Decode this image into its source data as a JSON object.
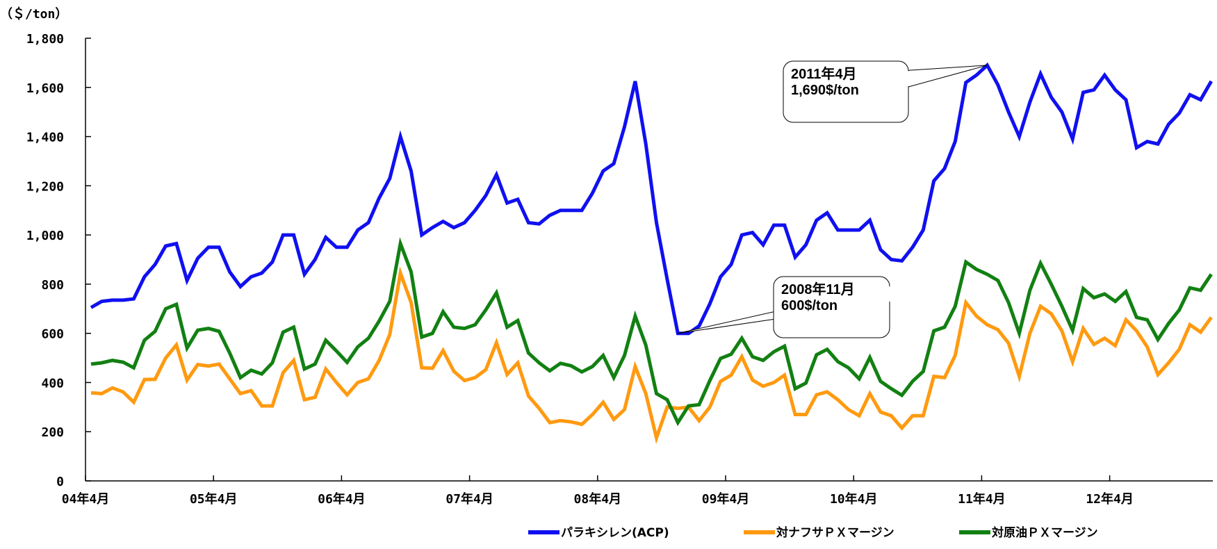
{
  "chart_data": {
    "type": "line",
    "ylabel": "（＄/ton）",
    "ylim": [
      0,
      1800
    ],
    "yticks": [
      0,
      200,
      400,
      600,
      800,
      1000,
      1200,
      1400,
      1600,
      1800
    ],
    "ytick_labels": [
      "0",
      "200",
      "400",
      "600",
      "800",
      "1,000",
      "1,200",
      "1,400",
      "1,600",
      "1,800"
    ],
    "xticks": [
      {
        "label": "04年4月",
        "index": 0
      },
      {
        "label": "05年4月",
        "index": 12
      },
      {
        "label": "06年4月",
        "index": 24
      },
      {
        "label": "07年4月",
        "index": 36
      },
      {
        "label": "08年4月",
        "index": 48
      },
      {
        "label": "09年4月",
        "index": 60
      },
      {
        "label": "10年4月",
        "index": 72
      },
      {
        "label": "11年4月",
        "index": 84
      },
      {
        "label": "12年4月",
        "index": 96
      }
    ],
    "grid": false,
    "legend": "bottom",
    "series": [
      {
        "name": "パラキシレン(ACP)",
        "color": "#1010f0",
        "values": [
          705,
          730,
          735,
          735,
          740,
          830,
          880,
          955,
          965,
          815,
          905,
          950,
          950,
          850,
          790,
          830,
          845,
          890,
          1000,
          1000,
          840,
          900,
          990,
          950,
          950,
          1020,
          1050,
          1150,
          1230,
          1400,
          1260,
          1000,
          1030,
          1055,
          1030,
          1050,
          1100,
          1160,
          1245,
          1130,
          1145,
          1050,
          1045,
          1080,
          1100,
          1100,
          1100,
          1170,
          1260,
          1290,
          1440,
          1625,
          1370,
          1050,
          820,
          600,
          600,
          630,
          720,
          830,
          880,
          1000,
          1010,
          960,
          1040,
          1040,
          910,
          960,
          1060,
          1090,
          1020,
          1020,
          1020,
          1060,
          940,
          900,
          895,
          950,
          1020,
          1220,
          1270,
          1380,
          1620,
          1650,
          1690,
          1610,
          1500,
          1400,
          1540,
          1655,
          1560,
          1500,
          1390,
          1580,
          1590,
          1650,
          1590,
          1550,
          1355,
          1380,
          1370,
          1450,
          1495,
          1570,
          1550,
          1625
        ]
      },
      {
        "name": "対ナフサＰＸマージン",
        "color": "#ff9a10",
        "values": [
          358,
          355,
          378,
          362,
          320,
          412,
          413,
          500,
          553,
          410,
          473,
          467,
          475,
          415,
          355,
          367,
          305,
          305,
          440,
          490,
          330,
          340,
          455,
          400,
          350,
          400,
          415,
          490,
          595,
          845,
          725,
          460,
          458,
          530,
          446,
          408,
          420,
          452,
          562,
          433,
          480,
          345,
          295,
          237,
          245,
          240,
          230,
          270,
          320,
          250,
          290,
          465,
          355,
          175,
          300,
          295,
          300,
          245,
          300,
          405,
          430,
          505,
          410,
          385,
          400,
          430,
          270,
          270,
          350,
          362,
          330,
          290,
          265,
          355,
          280,
          265,
          215,
          265,
          265,
          425,
          420,
          510,
          725,
          670,
          635,
          615,
          560,
          425,
          600,
          710,
          680,
          610,
          485,
          620,
          555,
          580,
          550,
          655,
          610,
          545,
          432,
          480,
          535,
          635,
          605,
          665
        ]
      },
      {
        "name": "対原油ＰＸマージン",
        "color": "#128012",
        "values": [
          475,
          480,
          490,
          483,
          460,
          572,
          608,
          700,
          718,
          540,
          613,
          620,
          608,
          520,
          420,
          450,
          435,
          480,
          605,
          625,
          455,
          475,
          572,
          528,
          482,
          545,
          580,
          650,
          730,
          965,
          850,
          585,
          600,
          688,
          625,
          620,
          635,
          695,
          765,
          625,
          652,
          520,
          480,
          448,
          478,
          468,
          443,
          465,
          510,
          420,
          510,
          670,
          552,
          355,
          330,
          237,
          305,
          310,
          408,
          498,
          515,
          580,
          505,
          490,
          525,
          548,
          375,
          398,
          513,
          535,
          485,
          460,
          415,
          502,
          405,
          375,
          348,
          405,
          445,
          610,
          625,
          710,
          890,
          860,
          840,
          815,
          725,
          600,
          775,
          885,
          800,
          710,
          612,
          782,
          745,
          760,
          730,
          770,
          665,
          655,
          575,
          640,
          695,
          785,
          775,
          840
        ]
      }
    ],
    "annotations": [
      {
        "line1": "2011年4月",
        "line2": "1,690$/ton",
        "series": 0,
        "index": 84
      },
      {
        "line1": "2008年11月",
        "line2": "600$/ton",
        "series": 0,
        "index": 55
      }
    ]
  }
}
